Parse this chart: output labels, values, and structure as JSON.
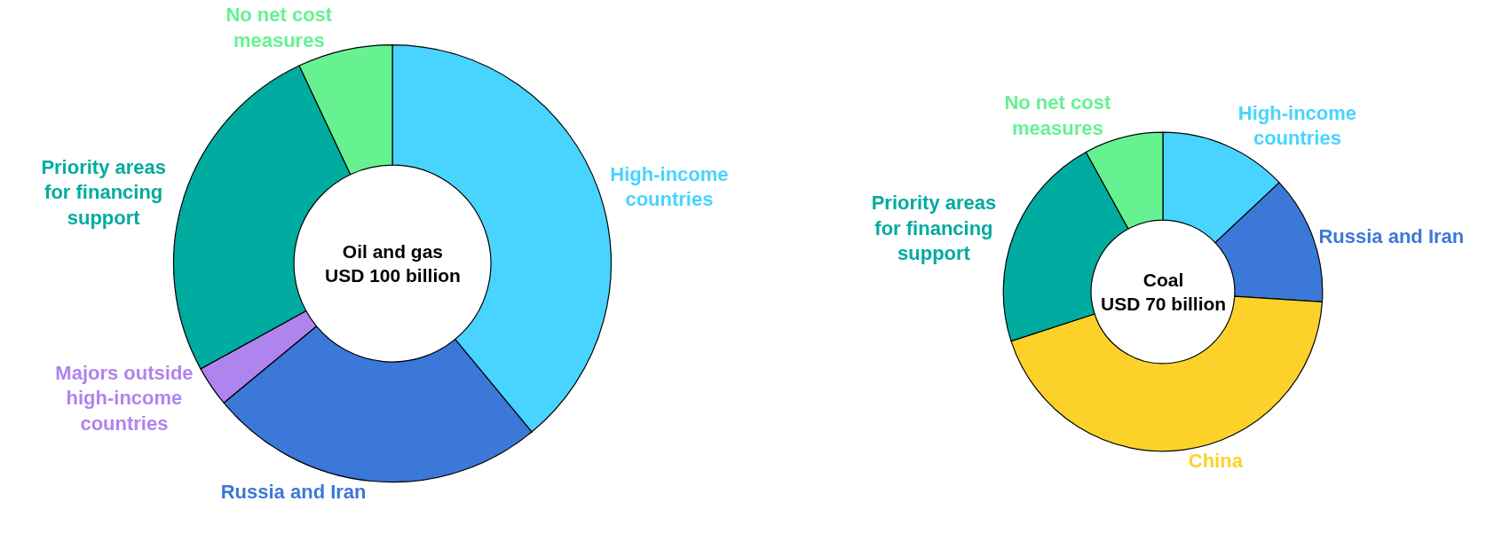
{
  "chart_data": [
    {
      "type": "donut",
      "title": "Oil and gas USD 100 billion",
      "categories": [
        "High-income countries",
        "Russia and Iran",
        "Majors outside high-income countries",
        "Priority areas for financing support",
        "No net cost measures"
      ],
      "values": [
        39,
        25,
        3,
        26,
        7
      ],
      "colors": [
        "#48d4ff",
        "#3c78d8",
        "#b084ee",
        "#00ab9f",
        "#66f291"
      ],
      "legend": false
    },
    {
      "type": "donut",
      "title": "Coal USD 70 billion",
      "categories": [
        "High-income countries",
        "Russia and Iran",
        "China",
        "Priority areas for financing support",
        "No net cost measures"
      ],
      "values": [
        13,
        13,
        44,
        22,
        8
      ],
      "colors": [
        "#48d4ff",
        "#3c78d8",
        "#fcd22a",
        "#00ab9f",
        "#66f291"
      ],
      "legend": false
    }
  ]
}
